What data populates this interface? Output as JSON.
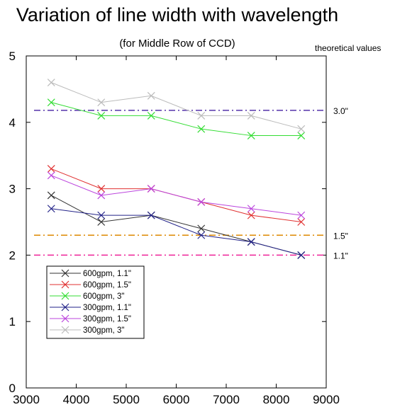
{
  "chart_data": {
    "type": "line",
    "title": "Variation of line width with wavelength",
    "subtitle": "(for Middle Row of CCD)",
    "right_axis_title": "theoretical values",
    "xlabel": "",
    "ylabel": "",
    "xlim": [
      3000,
      9000
    ],
    "ylim": [
      0,
      5
    ],
    "xticks": [
      3000,
      4000,
      5000,
      6000,
      7000,
      8000,
      9000
    ],
    "yticks": [
      0,
      1,
      2,
      3,
      4,
      5
    ],
    "grid": false,
    "legend_position": "bottom-left",
    "x": [
      3500,
      4500,
      5500,
      6500,
      7500,
      8500
    ],
    "series": [
      {
        "name": "600gpm, 1.1\"",
        "color": "#333333",
        "values": [
          2.9,
          2.5,
          2.6,
          2.4,
          2.2,
          2.0
        ]
      },
      {
        "name": "600gpm, 1.5\"",
        "color": "#e03030",
        "values": [
          3.3,
          3.0,
          3.0,
          2.8,
          2.6,
          2.5
        ]
      },
      {
        "name": "600gpm, 3\"",
        "color": "#33dd33",
        "values": [
          4.3,
          4.1,
          4.1,
          3.9,
          3.8,
          3.8
        ]
      },
      {
        "name": "300gpm, 1.1\"",
        "color": "#222288",
        "values": [
          2.7,
          2.6,
          2.6,
          2.3,
          2.2,
          2.0
        ]
      },
      {
        "name": "300gpm, 1.5\"",
        "color": "#bb44dd",
        "values": [
          3.2,
          2.9,
          3.0,
          2.8,
          2.7,
          2.6
        ]
      },
      {
        "name": "300gpm, 3\"",
        "color": "#bbbbbb",
        "values": [
          4.6,
          4.3,
          4.4,
          4.1,
          4.1,
          3.9
        ]
      }
    ],
    "reference_lines": [
      {
        "label": "3.0\"",
        "y": 4.18,
        "color": "#5533aa"
      },
      {
        "label": "1.5\"",
        "y": 2.3,
        "color": "#dd8800"
      },
      {
        "label": "1.1\"",
        "y": 2.0,
        "color": "#ee2299"
      }
    ]
  }
}
